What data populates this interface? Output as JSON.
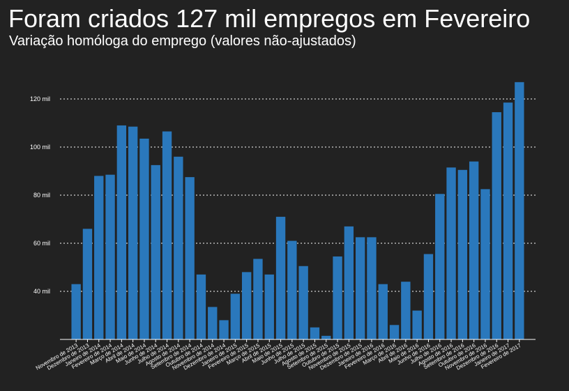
{
  "chart_data": {
    "type": "bar",
    "title": "Foram criados 127 mil empregos em Fevereiro",
    "subtitle": "Variação homóloga do emprego (valores não-ajustados)",
    "color": "#2a78bc",
    "background": "#222222",
    "grid": true,
    "ylim": [
      20,
      130
    ],
    "yticks": [
      40,
      60,
      80,
      100,
      120
    ],
    "ytick_labels": [
      "40 mil",
      "60 mil",
      "80 mil",
      "100 mil",
      "120 mil"
    ],
    "categories": [
      "Novembro 2013",
      "Dezembro 2013",
      "Janeiro 2014",
      "Fevereiro 2014",
      "Março 2014",
      "Abril 2014",
      "Maio 2014",
      "Junho 2014",
      "Julho 2014",
      "Agosto 2014",
      "Setembro 2014",
      "Outubro 2014",
      "Novembro 2014",
      "Dezembro 2014",
      "Janeiro 2015",
      "Fevereiro 2015",
      "Março 2015",
      "Abril 2015",
      "Maio 2015",
      "Junho 2015",
      "Julho 2015",
      "Agosto 2015",
      "Setembro 2015",
      "Outubro 2015",
      "Novembro 2015",
      "Dezembro 2015",
      "Janeiro 2016",
      "Fevereiro 2016",
      "Março 2016",
      "Abril 2016",
      "Maio 2016",
      "Junho 2016",
      "Julho 2016",
      "Agosto 2016",
      "Setembro 2016",
      "Outubro 2016",
      "Novembro 2016",
      "Dezembro 2016",
      "Janeiro 2017",
      "Fevereiro 2017"
    ],
    "category_labels": [
      "Novembro de 2013",
      "Dezembro de 2013",
      "Janeiro de 2014",
      "Fevereiro de 2014",
      "Março de 2014",
      "Abril de 2014",
      "Maio de 2014",
      "Junho de 2014",
      "Julho de 2014",
      "Agosto de 2014",
      "Setembro de 2014",
      "Outubro de 2014",
      "Novembro de 2014",
      "Dezembro de 2014",
      "Janeiro de 2015",
      "Fevereiro de 2015",
      "Março de 2015",
      "Abril de 2015",
      "Maio de 2015",
      "Junho de 2015",
      "Julho de 2015",
      "Agosto de 2015",
      "Setembro de 2015",
      "Outubro de 2015",
      "Novembro de 2015",
      "Dezembro de 2015",
      "Janeiro de 2016",
      "Fevereiro de 2016",
      "Março de 2016",
      "Abril de 2016",
      "Maio de 2016",
      "Junho de 2016",
      "Julho de 2016",
      "Agosto de 2016",
      "Setembro de 2016",
      "Outubro de 2016",
      "Novembro de 2016",
      "Dezembro de 2016",
      "Janeiro de 2017",
      "Fevereiro de 2017"
    ],
    "values": [
      43,
      66,
      88,
      88.5,
      109,
      108.5,
      103.5,
      92.5,
      106.5,
      96,
      87.5,
      47,
      33.5,
      28,
      39,
      48,
      53.5,
      47,
      71,
      61,
      50.5,
      25,
      21.5,
      54.5,
      67,
      62.5,
      62.5,
      43,
      26,
      44,
      32,
      55.5,
      80.5,
      91.5,
      90.5,
      94,
      82.5,
      114.5,
      118.5,
      127
    ]
  }
}
